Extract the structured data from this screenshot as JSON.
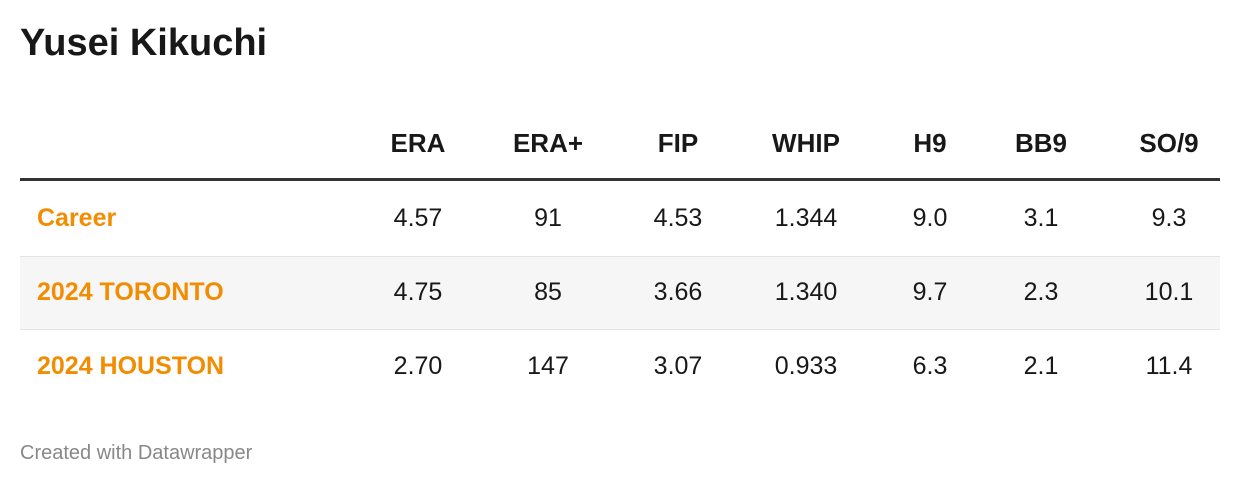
{
  "title": "Yusei Kikuchi",
  "table": {
    "columns": [
      "ERA",
      "ERA+",
      "FIP",
      "WHIP",
      "H9",
      "BB9",
      "SO/9"
    ],
    "rows": [
      {
        "label": "Career",
        "cells": [
          "4.57",
          "91",
          "4.53",
          "1.344",
          "9.0",
          "3.1",
          "9.3"
        ]
      },
      {
        "label": "2024 TORONTO",
        "cells": [
          "4.75",
          "85",
          "3.66",
          "1.340",
          "9.7",
          "2.3",
          "10.1"
        ]
      },
      {
        "label": "2024 HOUSTON",
        "cells": [
          "2.70",
          "147",
          "3.07",
          "0.933",
          "6.3",
          "2.1",
          "11.4"
        ]
      }
    ]
  },
  "footer": "Created with Datawrapper"
}
